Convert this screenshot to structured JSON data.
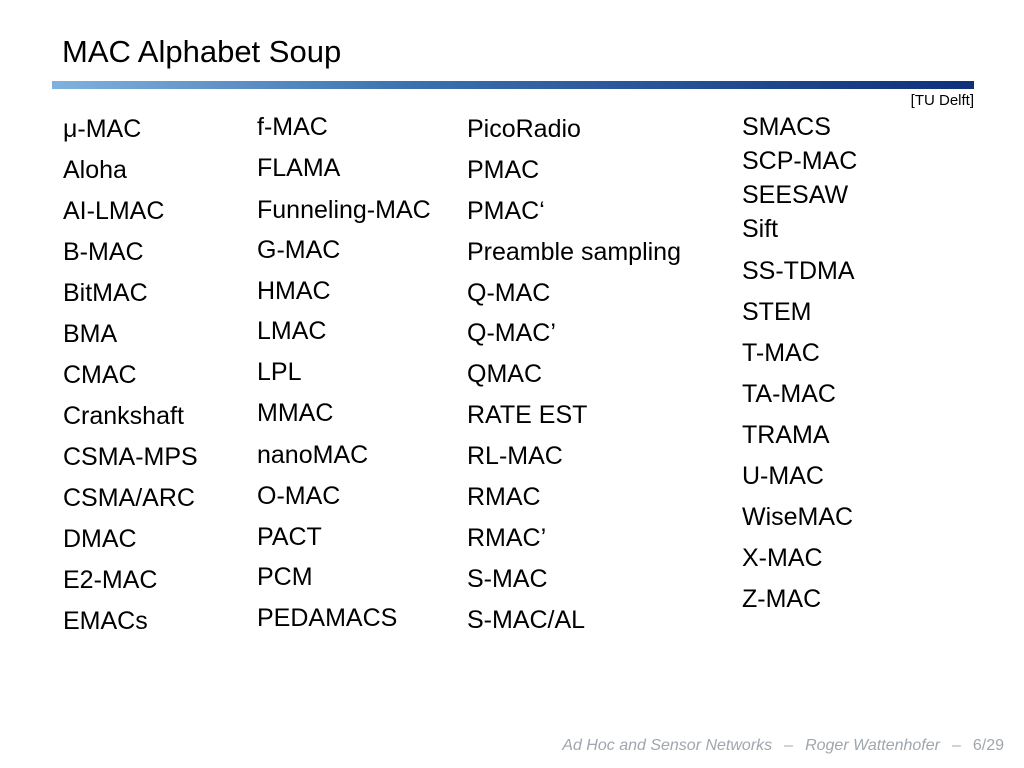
{
  "slide": {
    "title": "MAC Alphabet Soup",
    "citation": "[TU Delft]"
  },
  "columns": [
    [
      "μ-MAC",
      "Aloha",
      "AI-LMAC",
      "B-MAC",
      "BitMAC",
      "BMA",
      "CMAC",
      "Crankshaft",
      "CSMA-MPS",
      "CSMA/ARC",
      "DMAC",
      "E2-MAC",
      "EMACs"
    ],
    [
      "f-MAC",
      "FLAMA",
      "Funneling-MAC",
      "G-MAC",
      "HMAC",
      "LMAC",
      "LPL",
      "MMAC",
      "nanoMAC",
      "O-MAC",
      "PACT",
      "PCM",
      "PEDAMACS"
    ],
    [
      "PicoRadio",
      "PMAC",
      "PMAC‘",
      "Preamble sampling",
      "Q-MAC",
      "Q-MAC’",
      "QMAC",
      "RATE EST",
      "RL-MAC",
      "RMAC",
      "RMAC’",
      "S-MAC",
      "S-MAC/AL"
    ],
    [
      "SMACS",
      "SCP-MAC",
      "SEESAW",
      "Sift",
      "SS-TDMA",
      "STEM",
      "T-MAC",
      "TA-MAC",
      "TRAMA",
      "U-MAC",
      "WiseMAC",
      "X-MAC",
      "Z-MAC"
    ]
  ],
  "footer": {
    "course": "Ad Hoc and Sensor Networks",
    "separator": "–",
    "author": "Roger Wattenhofer",
    "page": "6/29"
  }
}
